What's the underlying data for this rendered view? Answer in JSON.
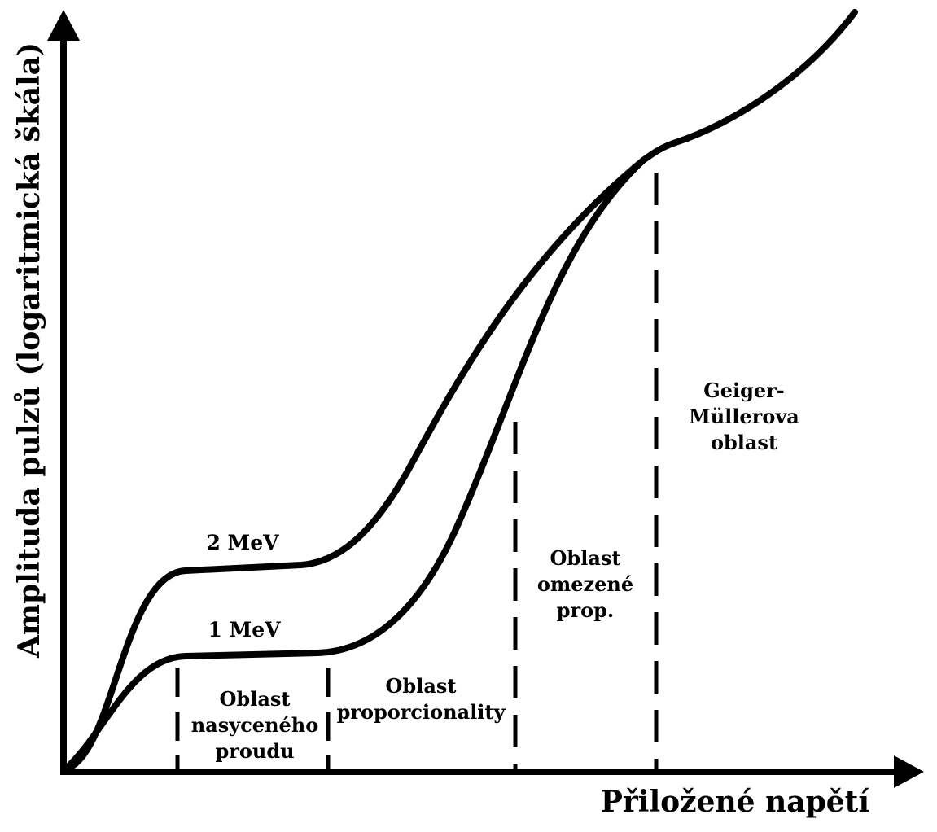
{
  "axes": {
    "x_label": "Přiložené napětí",
    "y_label": "Amplituda pulzů (logaritmická škála)"
  },
  "curves": [
    {
      "label": "2 MeV"
    },
    {
      "label": "1 MeV"
    }
  ],
  "regions": {
    "saturation": [
      "Oblast",
      "nasyceného",
      "proudu"
    ],
    "proportional": [
      "Oblast",
      "proporcionality"
    ],
    "limited": [
      "Oblast",
      "omezené",
      "prop."
    ],
    "geiger": [
      "Geiger-",
      "Müllerova",
      "oblast"
    ]
  }
}
